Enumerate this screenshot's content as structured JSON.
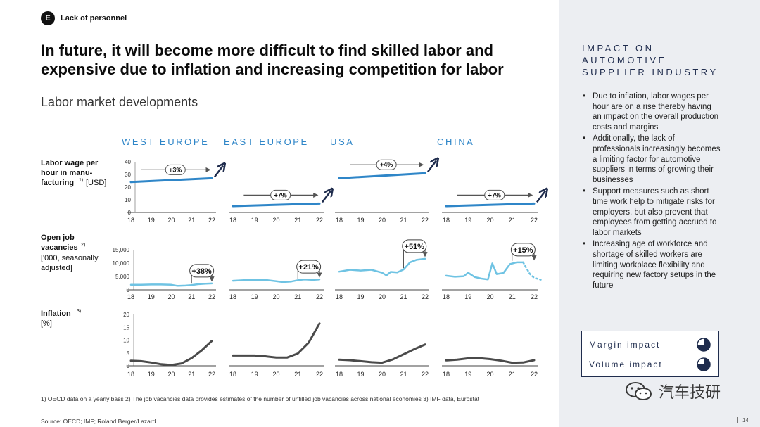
{
  "header": {
    "badge": "E",
    "section": "Lack of personnel"
  },
  "title": "In future, it will become more difficult to find skilled labor and expensive due to inflation and increasing competition for labor",
  "subtitle": "Labor market developments",
  "regions": [
    "WEST EUROPE",
    "EAST EUROPE",
    "USA",
    "CHINA"
  ],
  "row_labels": {
    "wage_html_lines": [
      "Labor wage per",
      "hour in manu-",
      "facturing"
    ],
    "wage_sup": "1)",
    "wage_unit": "[USD]",
    "vac_lines": [
      "Open job",
      "vacancies"
    ],
    "vac_sup": "2)",
    "vac_unit_lines": [
      "['000, seasonally",
      "adjusted]"
    ],
    "infl_line": "Inflation",
    "infl_sup": "3)",
    "infl_unit": "[%]"
  },
  "colors": {
    "wage": "#2f86c8",
    "vacancy": "#6fc3e3",
    "inflation": "#4a4a4a",
    "arrow": "#555555",
    "navy": "#1f2c4d"
  },
  "chart_data": [
    {
      "type": "line",
      "row": "wage",
      "x_ticks": [
        "18",
        "19",
        "20",
        "21",
        "22"
      ],
      "ylim": [
        0,
        40
      ],
      "y_ticks": [
        "0",
        "10",
        "20",
        "30",
        "40"
      ],
      "series": [
        {
          "region": "WEST EUROPE",
          "x": [
            18,
            22
          ],
          "y": [
            24,
            27
          ],
          "annotation": "+3%"
        },
        {
          "region": "EAST EUROPE",
          "x": [
            18,
            22
          ],
          "y": [
            5,
            7
          ],
          "annotation": "+7%"
        },
        {
          "region": "USA",
          "x": [
            18,
            22
          ],
          "y": [
            27,
            31
          ],
          "annotation": "+4%"
        },
        {
          "region": "CHINA",
          "x": [
            18,
            22
          ],
          "y": [
            5,
            7
          ],
          "annotation": "+7%"
        }
      ]
    },
    {
      "type": "line",
      "row": "vacancies",
      "x_ticks": [
        "18",
        "19",
        "20",
        "21",
        "22"
      ],
      "ylim": [
        0,
        15000
      ],
      "y_ticks": [
        "0",
        "5,000",
        "10,000",
        "15,000"
      ],
      "series": [
        {
          "region": "WEST EUROPE",
          "x": [
            18,
            18.5,
            19,
            19.5,
            20,
            20.3,
            20.7,
            21,
            21.3,
            21.7,
            22
          ],
          "y": [
            1900,
            1900,
            2000,
            2000,
            1900,
            1500,
            1600,
            1800,
            2100,
            2300,
            2400
          ],
          "annotation": "+38%"
        },
        {
          "region": "EAST EUROPE",
          "x": [
            18,
            18.5,
            19,
            19.5,
            20,
            20.3,
            20.7,
            21,
            21.3,
            21.7,
            22
          ],
          "y": [
            3400,
            3600,
            3700,
            3700,
            3200,
            2900,
            3100,
            3600,
            3900,
            3700,
            3900
          ],
          "annotation": "+21%"
        },
        {
          "region": "USA",
          "x": [
            18,
            18.5,
            19,
            19.5,
            20,
            20.2,
            20.4,
            20.7,
            21,
            21.3,
            21.6,
            22
          ],
          "y": [
            6800,
            7500,
            7200,
            7500,
            6400,
            5400,
            6700,
            6500,
            7600,
            10300,
            11200,
            11600
          ],
          "annotation": "+51%"
        },
        {
          "region": "CHINA",
          "x": [
            18,
            18.4,
            18.8,
            19,
            19.3,
            19.6,
            19.9,
            20.1,
            20.3,
            20.6,
            20.9,
            21.2,
            21.5
          ],
          "y": [
            5300,
            4900,
            5100,
            6400,
            4800,
            4200,
            3900,
            9900,
            5900,
            6300,
            9600,
            10300,
            10300
          ],
          "projected_x": [
            21.5,
            21.8,
            22,
            22.3
          ],
          "projected_y": [
            10300,
            6000,
            4500,
            3800
          ],
          "annotation": "+15%"
        }
      ]
    },
    {
      "type": "line",
      "row": "inflation",
      "x_ticks": [
        "18",
        "19",
        "20",
        "21",
        "22"
      ],
      "ylim": [
        0,
        20
      ],
      "y_ticks": [
        "0",
        "5",
        "10",
        "15",
        "20"
      ],
      "series": [
        {
          "region": "WEST EUROPE",
          "x": [
            18,
            18.5,
            19,
            19.5,
            20,
            20.5,
            21,
            21.5,
            22
          ],
          "y": [
            2,
            1.8,
            1.3,
            0.6,
            0.3,
            0.9,
            3,
            6,
            9.7
          ]
        },
        {
          "region": "EAST EUROPE",
          "x": [
            18,
            18.5,
            19,
            19.5,
            20,
            20.5,
            21,
            21.5,
            22
          ],
          "y": [
            4,
            4,
            4,
            3.7,
            3.2,
            3.2,
            4.8,
            9,
            16.5
          ]
        },
        {
          "region": "USA",
          "x": [
            18,
            18.5,
            19,
            19.5,
            20,
            20.5,
            21,
            21.5,
            22
          ],
          "y": [
            2.4,
            2.2,
            1.8,
            1.4,
            1.2,
            2.5,
            4.5,
            6.5,
            8.3
          ]
        },
        {
          "region": "CHINA",
          "x": [
            18,
            18.5,
            19,
            19.5,
            20,
            20.5,
            21,
            21.5,
            22
          ],
          "y": [
            2.1,
            2.4,
            2.9,
            3,
            2.6,
            2,
            1.2,
            1.3,
            2.2
          ]
        }
      ]
    }
  ],
  "footnote": "1) OECD data  on a yearly bass 2) The job vacancies data provides estimates of the number of unfilled job vacancies across national economies 3) IMF data, Eurostat",
  "source": "Source: OECD; IMF; Roland Berger/Lazard",
  "side": {
    "title_lines": [
      "IMPACT ON",
      "AUTOMOTIVE",
      "SUPPLIER INDUSTRY"
    ],
    "bullets": [
      "Due to inflation, labor wages per hour are on a rise thereby having an impact on the overall production costs and margins",
      "Additionally, the lack of professionals increasingly becomes a limiting factor for automotive suppliers in terms of growing their businesses",
      "Support measures such as short time work help to mitigate risks for employers, but also prevent that employees from getting accrued to labor markets",
      "Increasing age of workforce and shortage of skilled workers are limiting workplace flexibility and requiring new factory setups in the future"
    ],
    "impacts": [
      {
        "label": "Margin impact",
        "level": 0.75
      },
      {
        "label": "Volume impact",
        "level": 0.75
      }
    ]
  },
  "watermark": "汽车技研",
  "page_number": "14"
}
